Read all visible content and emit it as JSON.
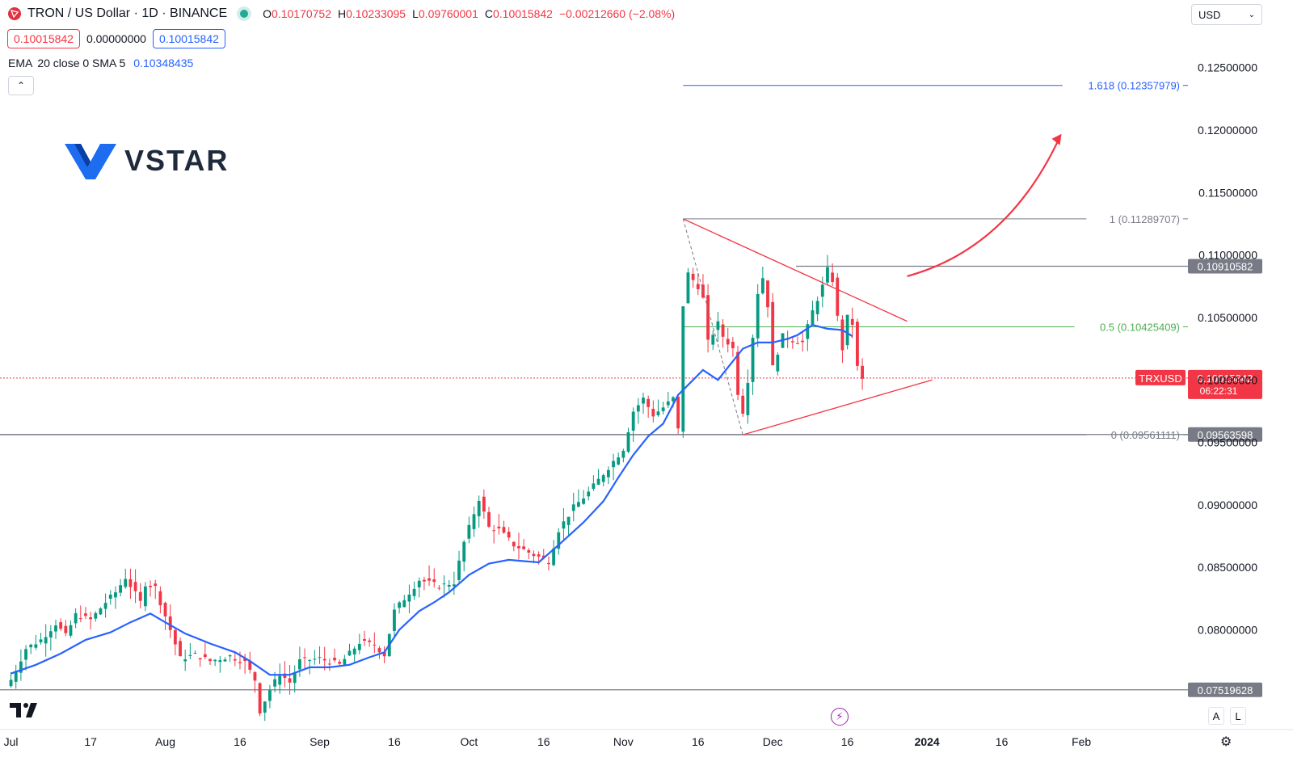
{
  "header": {
    "symbol_title": "TRON / US Dollar · 1D · BINANCE",
    "ohlc": [
      {
        "label": "O",
        "value": "0.10170752"
      },
      {
        "label": "H",
        "value": "0.10233095"
      },
      {
        "label": "L",
        "value": "0.09760001"
      },
      {
        "label": "C",
        "value": "0.10015842"
      },
      {
        "label": "",
        "value": "−0.00212660 (−2.08%)"
      }
    ],
    "sell_price": "0.10015842",
    "spread": "0.00000000",
    "buy_price": "0.10015842"
  },
  "indicator": {
    "name": "EMA",
    "params": "20 close 0 SMA 5",
    "value": "0.10348435"
  },
  "brand": {
    "logo_text": "VSTAR"
  },
  "currency_select": {
    "value": "USD"
  },
  "scale_buttons": {
    "auto": "A",
    "log": "L"
  },
  "colors": {
    "up": "#089981",
    "down": "#f23645",
    "ema": "#2962ff",
    "fib": "#787b86",
    "fib_mid": "#4caf50",
    "fib_ext": "#2962ff",
    "triangle": "#f23645"
  },
  "chart_data": {
    "type": "candlestick",
    "y_range": [
      0.0735,
      0.1277
    ],
    "y_ticks": [
      "0.12500000",
      "0.12000000",
      "0.11500000",
      "0.11000000",
      "0.10500000",
      "0.10000000",
      "0.09500000",
      "0.09000000",
      "0.08500000",
      "0.08000000"
    ],
    "x_ticks": [
      "Jul",
      "17",
      "Aug",
      "16",
      "Sep",
      "16",
      "Oct",
      "16",
      "Nov",
      "16",
      "Dec",
      "16",
      "2024",
      "16",
      "Feb"
    ],
    "x_tick_days": [
      0,
      16,
      31,
      46,
      62,
      77,
      92,
      107,
      123,
      138,
      153,
      168,
      184,
      199,
      215
    ],
    "x_range_days": [
      -2.2,
      257.5
    ],
    "x_unit": "days since Jul 1",
    "fib_levels": [
      {
        "label": "1.618 (0.12357979)",
        "value": 0.12357979
      },
      {
        "label": "1 (0.11289707)",
        "value": 0.11289707
      },
      {
        "label": "0.5 (0.10425409)",
        "value": 0.10425409
      },
      {
        "label": "0 (0.09561111)",
        "value": 0.09561111
      }
    ],
    "horizontal_lines": [
      {
        "label": "0.10910582",
        "value": 0.10910582
      },
      {
        "label": "0.09563598",
        "value": 0.09563598
      },
      {
        "label": "0.07519628",
        "value": 0.07519628
      }
    ],
    "current_price": {
      "symbol": "TRXUSD",
      "value": "0.10015842",
      "countdown": "06:22:31",
      "price": 0.10015842
    },
    "ema_points": [
      [
        0,
        0.0765
      ],
      [
        5,
        0.0772
      ],
      [
        10,
        0.0781
      ],
      [
        15,
        0.0792
      ],
      [
        20,
        0.0798
      ],
      [
        24,
        0.0806
      ],
      [
        28,
        0.0813
      ],
      [
        31,
        0.0806
      ],
      [
        35,
        0.0797
      ],
      [
        40,
        0.0789
      ],
      [
        45,
        0.0782
      ],
      [
        48,
        0.0775
      ],
      [
        52,
        0.0764
      ],
      [
        56,
        0.0764
      ],
      [
        60,
        0.077
      ],
      [
        64,
        0.077
      ],
      [
        68,
        0.0772
      ],
      [
        72,
        0.0778
      ],
      [
        75,
        0.0782
      ],
      [
        78,
        0.08
      ],
      [
        82,
        0.0815
      ],
      [
        85,
        0.0822
      ],
      [
        88,
        0.083
      ],
      [
        92,
        0.0844
      ],
      [
        96,
        0.0853
      ],
      [
        100,
        0.0856
      ],
      [
        103,
        0.0855
      ],
      [
        106,
        0.0854
      ],
      [
        110,
        0.0868
      ],
      [
        115,
        0.0886
      ],
      [
        119,
        0.0903
      ],
      [
        122,
        0.0922
      ],
      [
        125,
        0.094
      ],
      [
        128,
        0.0955
      ],
      [
        131,
        0.0965
      ],
      [
        134,
        0.0988
      ],
      [
        137,
        0.1
      ],
      [
        139,
        0.1008
      ],
      [
        142,
        0.1
      ],
      [
        144,
        0.101
      ],
      [
        147,
        0.1025
      ],
      [
        150,
        0.103
      ],
      [
        153,
        0.103
      ],
      [
        156,
        0.1033
      ],
      [
        158,
        0.1036
      ],
      [
        161,
        0.1044
      ],
      [
        164,
        0.1041
      ],
      [
        167,
        0.104
      ],
      [
        169,
        0.1035
      ]
    ],
    "ohlc_points": [
      [
        0,
        0.076
      ],
      [
        3,
        0.0785
      ],
      [
        6,
        0.0792
      ],
      [
        9,
        0.0805
      ],
      [
        11,
        0.0795
      ],
      [
        13,
        0.0812
      ],
      [
        16,
        0.0808
      ],
      [
        19,
        0.0822
      ],
      [
        21,
        0.083
      ],
      [
        23,
        0.0842
      ],
      [
        26,
        0.0822
      ],
      [
        27,
        0.0837
      ],
      [
        29,
        0.0834
      ],
      [
        30,
        0.0822
      ],
      [
        32,
        0.08
      ],
      [
        34,
        0.0777
      ],
      [
        37,
        0.078
      ],
      [
        40,
        0.0775
      ],
      [
        44,
        0.0779
      ],
      [
        47,
        0.0774
      ],
      [
        49,
        0.076
      ],
      [
        50,
        0.0735
      ],
      [
        52,
        0.0752
      ],
      [
        54,
        0.0765
      ],
      [
        56,
        0.0758
      ],
      [
        58,
        0.0775
      ],
      [
        62,
        0.0777
      ],
      [
        66,
        0.0772
      ],
      [
        70,
        0.079
      ],
      [
        73,
        0.0788
      ],
      [
        75,
        0.078
      ],
      [
        77,
        0.0815
      ],
      [
        79,
        0.0825
      ],
      [
        82,
        0.084
      ],
      [
        86,
        0.0835
      ],
      [
        89,
        0.0838
      ],
      [
        91,
        0.087
      ],
      [
        94,
        0.0905
      ],
      [
        96,
        0.0882
      ],
      [
        98,
        0.088
      ],
      [
        101,
        0.0868
      ],
      [
        103,
        0.0864
      ],
      [
        105,
        0.086
      ],
      [
        108,
        0.0855
      ],
      [
        110,
        0.088
      ],
      [
        113,
        0.0898
      ],
      [
        116,
        0.091
      ],
      [
        120,
        0.093
      ],
      [
        123,
        0.0945
      ],
      [
        125,
        0.0975
      ],
      [
        127,
        0.0985
      ],
      [
        129,
        0.0972
      ],
      [
        131,
        0.0978
      ],
      [
        133,
        0.0985
      ],
      [
        134,
        0.096
      ],
      [
        135,
        0.106
      ],
      [
        136,
        0.1085
      ],
      [
        138,
        0.1075
      ],
      [
        139,
        0.1065
      ],
      [
        140,
        0.103
      ],
      [
        142,
        0.1045
      ],
      [
        143,
        0.1035
      ],
      [
        145,
        0.1025
      ],
      [
        146,
        0.099
      ],
      [
        147,
        0.0975
      ],
      [
        148,
        0.1
      ],
      [
        150,
        0.107
      ],
      [
        151,
        0.1082
      ],
      [
        152,
        0.106
      ],
      [
        153,
        0.101
      ],
      [
        155,
        0.1035
      ],
      [
        157,
        0.1032
      ],
      [
        159,
        0.103
      ],
      [
        161,
        0.1055
      ],
      [
        163,
        0.1075
      ],
      [
        164,
        0.1088
      ],
      [
        165,
        0.108
      ],
      [
        166,
        0.105
      ],
      [
        167,
        0.1025
      ],
      [
        168,
        0.105
      ],
      [
        169,
        0.1045
      ],
      [
        170,
        0.101
      ],
      [
        171,
        0.1
      ]
    ],
    "triangle": [
      {
        "from": [
          135,
          0.11289707
        ],
        "to": [
          180,
          0.1047
        ]
      },
      {
        "from": [
          147,
          0.09561111
        ],
        "to": [
          185,
          0.1
        ]
      }
    ],
    "swing_line": {
      "from": [
        135,
        0.11289707
      ],
      "to": [
        147,
        0.09561111
      ]
    },
    "arrow": {
      "from": [
        180,
        0.1083
      ],
      "via": [
        200,
        0.1105
      ],
      "to": [
        211,
        0.1197
      ]
    }
  }
}
